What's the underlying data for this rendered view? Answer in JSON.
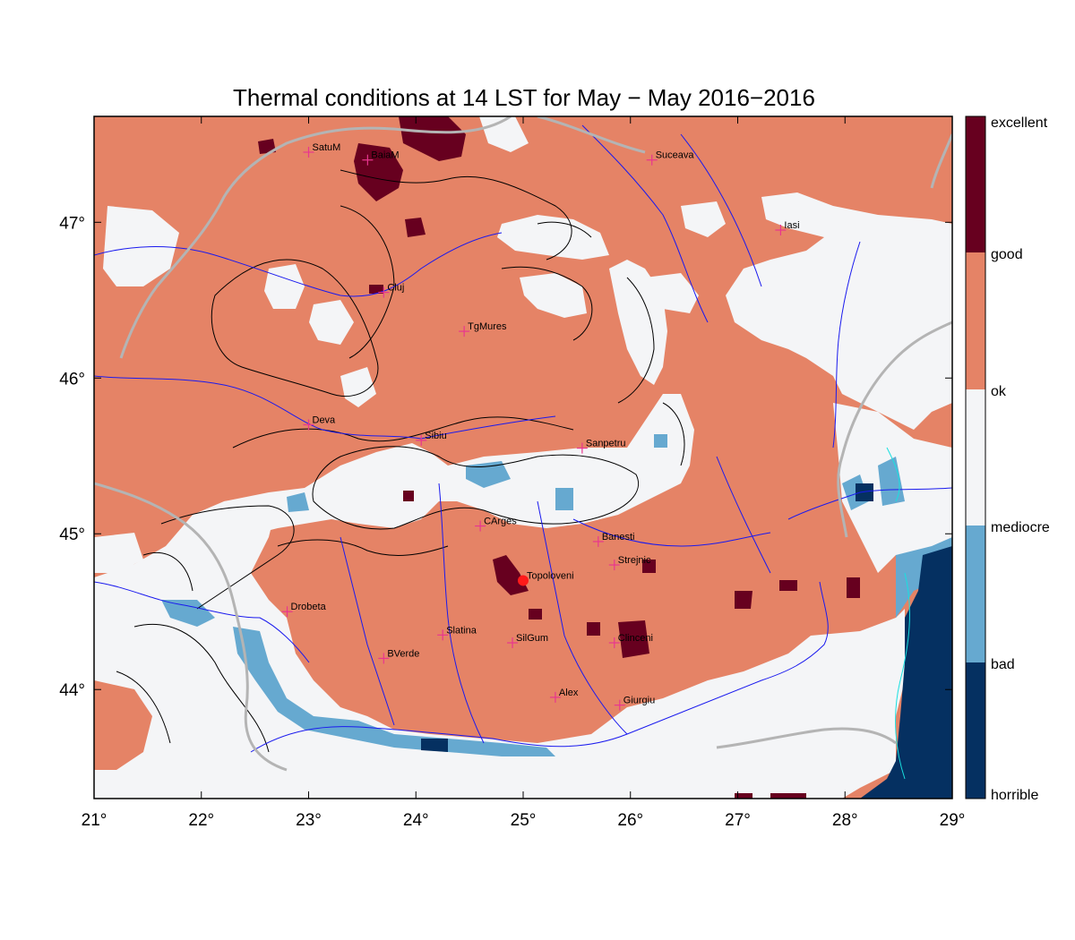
{
  "title": "Thermal conditions at 14 LST for May − May  2016−2016",
  "x_ticks": [
    "21°",
    "22°",
    "23°",
    "24°",
    "25°",
    "26°",
    "27°",
    "28°",
    "29°"
  ],
  "y_ticks": [
    "44°",
    "45°",
    "46°",
    "47°"
  ],
  "colorbar_labels": [
    "excellent",
    "good",
    "ok",
    "mediocre",
    "bad",
    "horrible"
  ],
  "colors": {
    "excellent": "#67001f",
    "good": "#e58366",
    "ok": "#f4f5f7",
    "mediocre": "#f4f5f7",
    "bad": "#66a9d0",
    "horrible": "#053061",
    "rivers": "#1a1aee",
    "borders": "#b4b4b4",
    "marker": "#e8368f",
    "highlight": "#ff1a1a"
  },
  "cities": [
    {
      "name": "SatuM",
      "lon": 23.0,
      "lat": 47.45
    },
    {
      "name": "BaiaM",
      "lon": 23.55,
      "lat": 47.4
    },
    {
      "name": "Suceava",
      "lon": 26.2,
      "lat": 47.4
    },
    {
      "name": "Iasi",
      "lon": 27.4,
      "lat": 46.95
    },
    {
      "name": "Cluj",
      "lon": 23.7,
      "lat": 46.55
    },
    {
      "name": "TgMures",
      "lon": 24.45,
      "lat": 46.3
    },
    {
      "name": "Deva",
      "lon": 23.0,
      "lat": 45.7
    },
    {
      "name": "Sibiu",
      "lon": 24.05,
      "lat": 45.6
    },
    {
      "name": "Sanpetru",
      "lon": 25.55,
      "lat": 45.55
    },
    {
      "name": "CArges",
      "lon": 24.6,
      "lat": 45.05
    },
    {
      "name": "Banesti",
      "lon": 25.7,
      "lat": 44.95
    },
    {
      "name": "Strejnic",
      "lon": 25.85,
      "lat": 44.8
    },
    {
      "name": "Topoloveni",
      "lon": 25.0,
      "lat": 44.7
    },
    {
      "name": "Drobeta",
      "lon": 22.8,
      "lat": 44.5
    },
    {
      "name": "Slatina",
      "lon": 24.25,
      "lat": 44.35
    },
    {
      "name": "SilGum",
      "lon": 24.9,
      "lat": 44.3
    },
    {
      "name": "Clinceni",
      "lon": 25.85,
      "lat": 44.3
    },
    {
      "name": "BVerde",
      "lon": 23.7,
      "lat": 44.2
    },
    {
      "name": "Alex",
      "lon": 25.3,
      "lat": 43.95
    },
    {
      "name": "Giurgiu",
      "lon": 25.9,
      "lat": 43.9
    }
  ],
  "highlight_city": "Topoloveni"
}
